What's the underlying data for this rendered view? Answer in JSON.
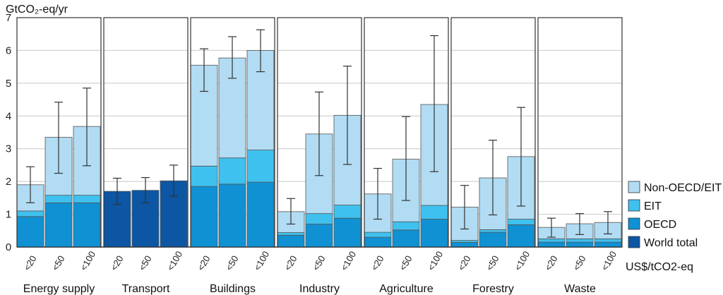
{
  "chart_data": {
    "type": "bar",
    "stacked": true,
    "ylabel": "GtCO₂-eq/yr",
    "xunit": "US$/tCO2-eq",
    "ylim": [
      0,
      7
    ],
    "yticks": [
      "0",
      "1",
      "2",
      "3",
      "4",
      "5",
      "6",
      "7"
    ],
    "grid": true,
    "legend_position": "right",
    "categories": [
      "<20",
      "<50",
      "<100"
    ],
    "legend": [
      {
        "key": "non_oecd_eit",
        "label": "Non-OECD/EIT",
        "color": "#b1dcf3"
      },
      {
        "key": "eit",
        "label": "EIT",
        "color": "#3fc1ef"
      },
      {
        "key": "oecd",
        "label": "OECD",
        "color": "#0f91d3"
      },
      {
        "key": "world",
        "label": "World total",
        "color": "#0c56a3"
      }
    ],
    "sectors": [
      {
        "name": "Energy supply",
        "bars": [
          {
            "oecd": 0.93,
            "eit": 0.17,
            "non_oecd_eit": 0.8,
            "world": 0,
            "err_low": 1.35,
            "err_high": 2.45
          },
          {
            "oecd": 1.35,
            "eit": 0.23,
            "non_oecd_eit": 1.77,
            "world": 0,
            "err_low": 2.25,
            "err_high": 4.42
          },
          {
            "oecd": 1.35,
            "eit": 0.23,
            "non_oecd_eit": 2.1,
            "world": 0,
            "err_low": 2.48,
            "err_high": 4.85
          }
        ]
      },
      {
        "name": "Transport",
        "bars": [
          {
            "oecd": 0,
            "eit": 0,
            "non_oecd_eit": 0,
            "world": 1.7,
            "err_low": 1.3,
            "err_high": 2.1
          },
          {
            "oecd": 0,
            "eit": 0,
            "non_oecd_eit": 0,
            "world": 1.73,
            "err_low": 1.35,
            "err_high": 2.12
          },
          {
            "oecd": 0,
            "eit": 0,
            "non_oecd_eit": 0,
            "world": 2.02,
            "err_low": 1.55,
            "err_high": 2.5
          }
        ]
      },
      {
        "name": "Buildings",
        "bars": [
          {
            "oecd": 1.85,
            "eit": 0.62,
            "non_oecd_eit": 3.08,
            "world": 0,
            "err_low": 4.75,
            "err_high": 6.05
          },
          {
            "oecd": 1.92,
            "eit": 0.8,
            "non_oecd_eit": 3.05,
            "world": 0,
            "err_low": 5.15,
            "err_high": 6.42
          },
          {
            "oecd": 1.98,
            "eit": 0.98,
            "non_oecd_eit": 3.04,
            "world": 0,
            "err_low": 5.35,
            "err_high": 6.63
          }
        ]
      },
      {
        "name": "Industry",
        "bars": [
          {
            "oecd": 0.36,
            "eit": 0.08,
            "non_oecd_eit": 0.64,
            "world": 0,
            "err_low": 0.7,
            "err_high": 1.48
          },
          {
            "oecd": 0.7,
            "eit": 0.32,
            "non_oecd_eit": 2.43,
            "world": 0,
            "err_low": 2.18,
            "err_high": 4.73
          },
          {
            "oecd": 0.88,
            "eit": 0.4,
            "non_oecd_eit": 2.74,
            "world": 0,
            "err_low": 2.52,
            "err_high": 5.52
          }
        ]
      },
      {
        "name": "Agriculture",
        "bars": [
          {
            "oecd": 0.3,
            "eit": 0.15,
            "non_oecd_eit": 1.17,
            "world": 0,
            "err_low": 0.85,
            "err_high": 2.4
          },
          {
            "oecd": 0.52,
            "eit": 0.25,
            "non_oecd_eit": 1.91,
            "world": 0,
            "err_low": 1.42,
            "err_high": 3.98
          },
          {
            "oecd": 0.85,
            "eit": 0.42,
            "non_oecd_eit": 3.08,
            "world": 0,
            "err_low": 2.3,
            "err_high": 6.45
          }
        ]
      },
      {
        "name": "Forestry",
        "bars": [
          {
            "oecd": 0.14,
            "eit": 0.06,
            "non_oecd_eit": 1.02,
            "world": 0,
            "err_low": 0.55,
            "err_high": 1.88
          },
          {
            "oecd": 0.45,
            "eit": 0.08,
            "non_oecd_eit": 1.58,
            "world": 0,
            "err_low": 0.98,
            "err_high": 3.26
          },
          {
            "oecd": 0.68,
            "eit": 0.17,
            "non_oecd_eit": 1.91,
            "world": 0,
            "err_low": 1.25,
            "err_high": 4.26
          }
        ]
      },
      {
        "name": "Waste",
        "bars": [
          {
            "oecd": 0.15,
            "eit": 0.1,
            "non_oecd_eit": 0.35,
            "world": 0,
            "err_low": 0.3,
            "err_high": 0.88
          },
          {
            "oecd": 0.15,
            "eit": 0.1,
            "non_oecd_eit": 0.46,
            "world": 0,
            "err_low": 0.38,
            "err_high": 1.02
          },
          {
            "oecd": 0.15,
            "eit": 0.1,
            "non_oecd_eit": 0.5,
            "world": 0,
            "err_low": 0.4,
            "err_high": 1.08
          }
        ]
      }
    ]
  }
}
